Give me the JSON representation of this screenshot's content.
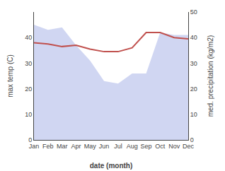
{
  "chart_data": {
    "type": "line",
    "x_label": "date (month)",
    "y_label": "max temp (C)",
    "y2_label": "med. precipitation (kg/m2)",
    "categories": [
      "Jan",
      "Feb",
      "Mar",
      "Apr",
      "May",
      "Jun",
      "Jul",
      "Aug",
      "Sep",
      "Oct",
      "Nov",
      "Dec"
    ],
    "series": [
      {
        "type": "line",
        "color": "#c0504d",
        "values": [
          38,
          37.5,
          36.5,
          37,
          35.5,
          34.5,
          34.5,
          36,
          42,
          42,
          40,
          39.5
        ]
      },
      {
        "type": "area",
        "color": "#aab4e8",
        "axis": "y2",
        "values": [
          45,
          43,
          44,
          37,
          31,
          23,
          22,
          26,
          26,
          42,
          41,
          41
        ]
      }
    ],
    "ylim": [
      0,
      50
    ],
    "yticks": [
      0,
      10,
      20,
      30,
      40
    ],
    "y2lim": [
      0,
      50
    ],
    "y2ticks": [
      0,
      10,
      20,
      30,
      40,
      50
    ],
    "grid": false
  }
}
